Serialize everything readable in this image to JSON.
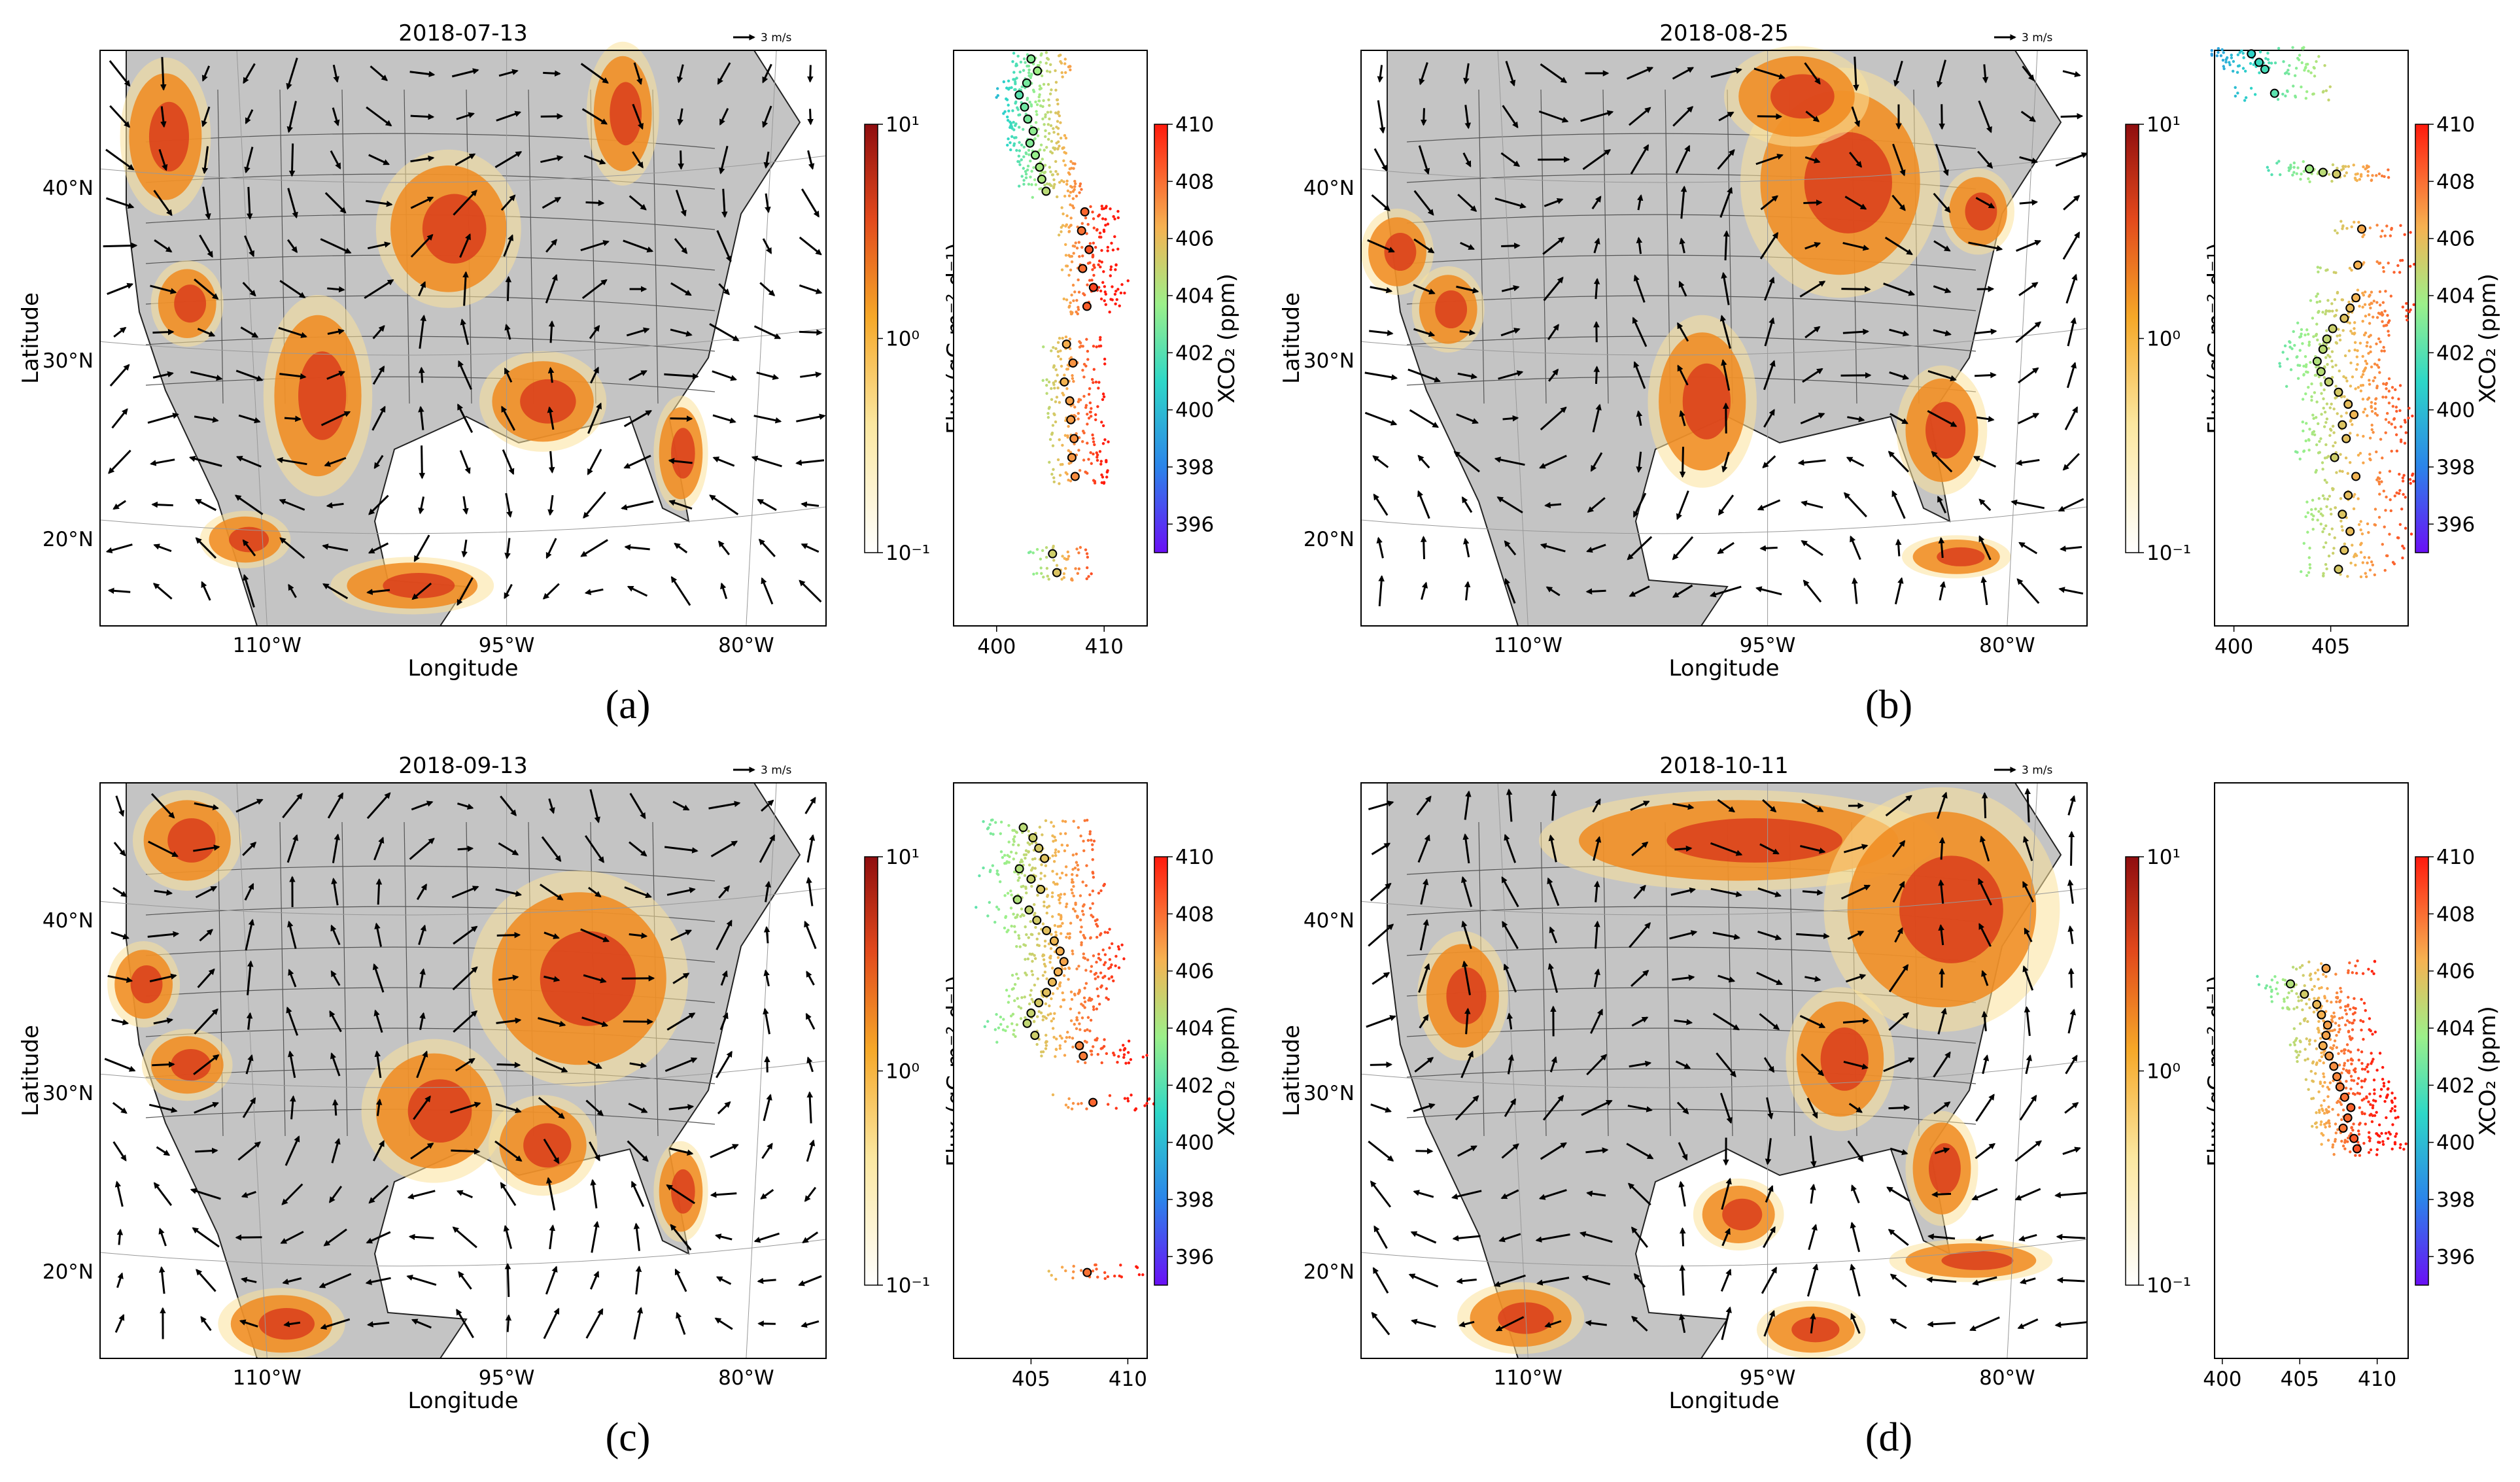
{
  "chart_data": [
    {
      "type": "map-scatter",
      "panel_label": "(a)",
      "title": "2018-07-13",
      "xlabel": "Longitude",
      "ylabel": "Latitude",
      "lon_ticks": [
        "110°W",
        "95°W",
        "80°W"
      ],
      "lat_ticks": [
        "40°N",
        "30°N",
        "20°N"
      ],
      "wind_key": "3 m/s",
      "flux_cbar": {
        "label": "Flux (gC m⁻² d⁻¹)",
        "ticks": [
          "10¹",
          "10⁰",
          "10⁻¹"
        ],
        "range": [
          0.1,
          10
        ],
        "scale": "log"
      },
      "xco2_cbar": {
        "label": "XCO₂ (ppm)",
        "ticks": [
          "410",
          "408",
          "406",
          "404",
          "402",
          "400",
          "398",
          "396"
        ],
        "range": [
          395,
          410
        ]
      },
      "xco2_profile": {
        "xticks": [
          "400",
          "410"
        ],
        "xlim": [
          396,
          414
        ],
        "latitudes": [
          47.5,
          46.8,
          46.1,
          45.4,
          44.7,
          44.0,
          43.3,
          42.6,
          41.9,
          41.2,
          40.5,
          39.8,
          38.6,
          37.5,
          36.4,
          35.3,
          34.2,
          33.1,
          30.9,
          29.8,
          28.7,
          27.6,
          26.5,
          25.4,
          24.3,
          23.2,
          18.7,
          17.6
        ],
        "xco2": [
          403.2,
          403.8,
          402.8,
          402.1,
          402.6,
          402.9,
          403.4,
          403.1,
          403.6,
          404.0,
          404.2,
          404.6,
          408.2,
          407.9,
          408.6,
          408.0,
          409.0,
          408.4,
          406.5,
          407.1,
          406.3,
          406.8,
          406.9,
          407.2,
          407.0,
          407.3,
          405.2,
          405.6
        ]
      }
    },
    {
      "type": "map-scatter",
      "panel_label": "(b)",
      "title": "2018-08-25",
      "xlabel": "Longitude",
      "ylabel": "Latitude",
      "lon_ticks": [
        "110°W",
        "95°W",
        "80°W"
      ],
      "lat_ticks": [
        "40°N",
        "30°N",
        "20°N"
      ],
      "wind_key": "3 m/s",
      "flux_cbar": {
        "label": "Flux (gC m⁻² d⁻¹)",
        "ticks": [
          "10¹",
          "10⁰",
          "10⁻¹"
        ],
        "range": [
          0.1,
          10
        ],
        "scale": "log"
      },
      "xco2_cbar": {
        "label": "XCO₂ (ppm)",
        "ticks": [
          "410",
          "408",
          "406",
          "404",
          "402",
          "400",
          "398",
          "396"
        ],
        "range": [
          395,
          410
        ]
      },
      "xco2_profile": {
        "xticks": [
          "400",
          "405"
        ],
        "xlim": [
          399,
          409
        ],
        "latitudes": [
          47.8,
          47.3,
          46.9,
          45.5,
          41.1,
          40.9,
          40.8,
          37.6,
          35.5,
          33.6,
          33.0,
          32.4,
          31.8,
          31.2,
          30.6,
          29.9,
          29.3,
          28.7,
          28.1,
          27.4,
          26.8,
          26.2,
          25.4,
          24.3,
          23.2,
          22.1,
          21.0,
          20.0,
          18.9,
          17.8
        ],
        "xco2": [
          400.9,
          401.3,
          401.6,
          402.1,
          403.9,
          404.6,
          405.3,
          406.6,
          406.4,
          406.3,
          406.0,
          405.7,
          405.1,
          404.8,
          404.6,
          404.3,
          404.5,
          404.9,
          405.4,
          405.9,
          406.2,
          405.6,
          405.8,
          405.2,
          406.3,
          405.9,
          405.6,
          406.0,
          405.7,
          405.4
        ]
      }
    },
    {
      "type": "map-scatter",
      "panel_label": "(c)",
      "title": "2018-09-13",
      "xlabel": "Longitude",
      "ylabel": "Latitude",
      "lon_ticks": [
        "110°W",
        "95°W",
        "80°W"
      ],
      "lat_ticks": [
        "40°N",
        "30°N",
        "20°N"
      ],
      "wind_key": "3 m/s",
      "flux_cbar": {
        "label": "Flux (gC m⁻² d⁻¹)",
        "ticks": [
          "10¹",
          "10⁰",
          "10⁻¹"
        ],
        "range": [
          0.1,
          10
        ],
        "scale": "log"
      },
      "xco2_cbar": {
        "label": "XCO₂ (ppm)",
        "ticks": [
          "410",
          "408",
          "406",
          "404",
          "402",
          "400",
          "398",
          "396"
        ],
        "range": [
          395,
          410
        ]
      },
      "xco2_profile": {
        "xticks": [
          "405",
          "410"
        ],
        "xlim": [
          401,
          411
        ],
        "latitudes": [
          45.4,
          44.8,
          44.2,
          43.6,
          43.0,
          42.4,
          41.8,
          41.2,
          40.6,
          40.0,
          39.4,
          38.8,
          38.2,
          37.6,
          37.0,
          36.4,
          35.8,
          35.2,
          34.6,
          34.0,
          33.3,
          32.7,
          32.1,
          29.4,
          19.5
        ],
        "xco2": [
          404.6,
          405.1,
          405.4,
          405.7,
          404.4,
          405.0,
          405.5,
          404.3,
          404.9,
          405.3,
          405.8,
          406.2,
          406.5,
          406.7,
          406.4,
          406.1,
          405.8,
          405.4,
          405.0,
          404.8,
          405.2,
          407.5,
          407.7,
          408.2,
          407.9
        ]
      }
    },
    {
      "type": "map-scatter",
      "panel_label": "(d)",
      "title": "2018-10-11",
      "xlabel": "Longitude",
      "ylabel": "Latitude",
      "lon_ticks": [
        "110°W",
        "95°W",
        "80°W"
      ],
      "lat_ticks": [
        "40°N",
        "30°N",
        "20°N"
      ],
      "wind_key": "3 m/s",
      "flux_cbar": {
        "label": "Flux (gC m⁻² d⁻¹)",
        "ticks": [
          "10¹",
          "10⁰",
          "10⁻¹"
        ],
        "range": [
          0.1,
          10
        ],
        "scale": "log"
      },
      "xco2_cbar": {
        "label": "XCO₂ (ppm)",
        "ticks": [
          "410",
          "408",
          "406",
          "404",
          "402",
          "400",
          "398",
          "396"
        ],
        "range": [
          395,
          410
        ]
      },
      "xco2_profile": {
        "xticks": [
          "400",
          "405",
          "410"
        ],
        "xlim": [
          399.5,
          412
        ],
        "latitudes": [
          37.2,
          36.3,
          35.7,
          35.1,
          34.5,
          33.9,
          33.3,
          32.7,
          32.1,
          31.5,
          30.9,
          30.3,
          29.7,
          29.1,
          28.5,
          27.9,
          27.3,
          26.7
        ],
        "xco2": [
          406.7,
          404.4,
          405.3,
          406.1,
          406.4,
          406.8,
          406.7,
          406.5,
          406.9,
          407.2,
          407.4,
          407.6,
          407.9,
          408.3,
          408.1,
          407.8,
          408.5,
          408.7
        ]
      }
    }
  ]
}
